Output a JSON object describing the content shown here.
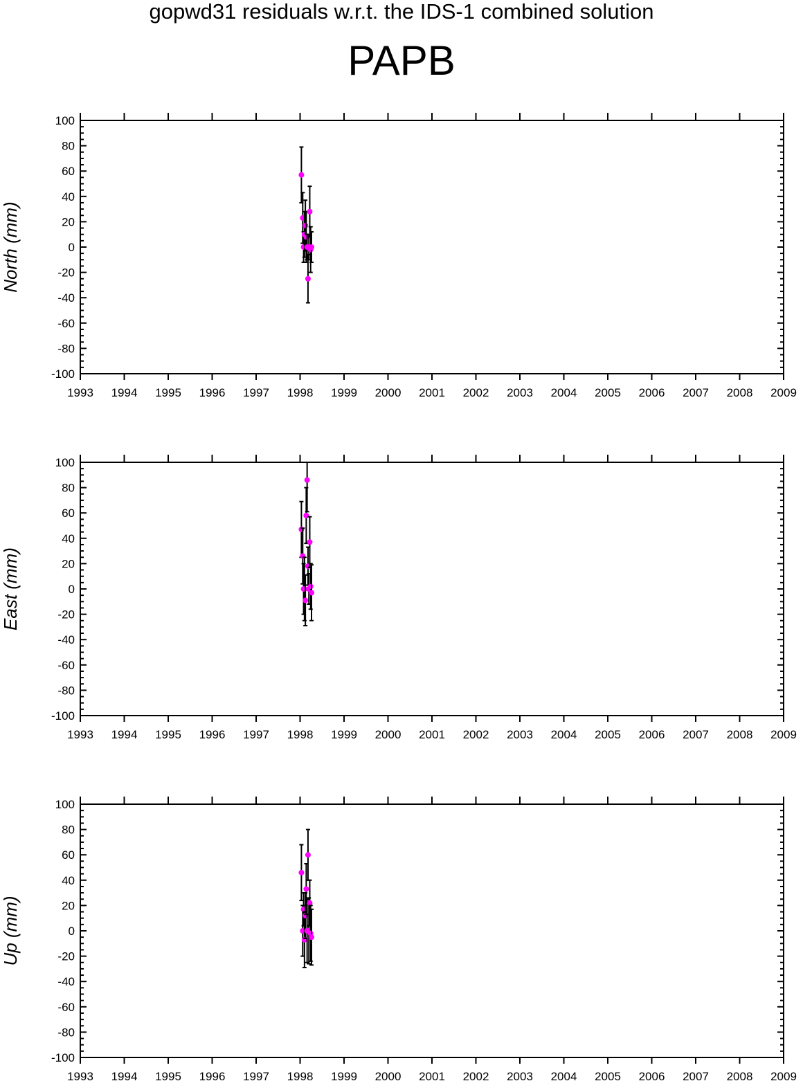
{
  "header": {
    "supertitle": "gopwd31 residuals w.r.t. the IDS-1 combined solution",
    "station": "PAPB"
  },
  "colors": {
    "point": "#ff00ff",
    "errorbar": "#000000",
    "axis": "#000000"
  },
  "chart_data": [
    {
      "type": "scatter",
      "ylabel": "North (mm)",
      "xlim": [
        1993,
        2009
      ],
      "ylim": [
        -100,
        100
      ],
      "x_ticks": [
        1993,
        1994,
        1995,
        1996,
        1997,
        1998,
        1999,
        2000,
        2001,
        2002,
        2003,
        2004,
        2005,
        2006,
        2007,
        2008,
        2009
      ],
      "y_ticks": [
        100,
        80,
        60,
        40,
        20,
        0,
        -20,
        -40,
        -60,
        -80,
        -100
      ],
      "grid": false,
      "series": [
        {
          "x": [
            1998.03,
            1998.06,
            1998.08,
            1998.1,
            1998.12,
            1998.14,
            1998.16,
            1998.18,
            1998.2,
            1998.22,
            1998.24,
            1998.26
          ],
          "y": [
            57,
            23,
            0,
            10,
            17,
            8,
            0,
            -25,
            0,
            28,
            -2,
            0
          ],
          "err": [
            22,
            20,
            12,
            18,
            20,
            20,
            10,
            19,
            10,
            20,
            18,
            12
          ]
        }
      ]
    },
    {
      "type": "scatter",
      "ylabel": "East (mm)",
      "xlim": [
        1993,
        2009
      ],
      "ylim": [
        -100,
        100
      ],
      "x_ticks": [
        1993,
        1994,
        1995,
        1996,
        1997,
        1998,
        1999,
        2000,
        2001,
        2002,
        2003,
        2004,
        2005,
        2006,
        2007,
        2008,
        2009
      ],
      "y_ticks": [
        100,
        80,
        60,
        40,
        20,
        0,
        -20,
        -40,
        -60,
        -80,
        -100
      ],
      "grid": false,
      "series": [
        {
          "x": [
            1998.03,
            1998.06,
            1998.08,
            1998.1,
            1998.12,
            1998.14,
            1998.16,
            1998.18,
            1998.2,
            1998.22,
            1998.24,
            1998.26
          ],
          "y": [
            47,
            26,
            0,
            0,
            -9,
            58,
            86,
            18,
            0,
            37,
            2,
            -3
          ],
          "err": [
            22,
            22,
            20,
            25,
            20,
            22,
            25,
            15,
            12,
            20,
            18,
            22
          ]
        }
      ]
    },
    {
      "type": "scatter",
      "ylabel": "Up (mm)",
      "xlim": [
        1993,
        2009
      ],
      "ylim": [
        -100,
        100
      ],
      "x_ticks": [
        1993,
        1994,
        1995,
        1996,
        1997,
        1998,
        1999,
        2000,
        2001,
        2002,
        2003,
        2004,
        2005,
        2006,
        2007,
        2008,
        2009
      ],
      "y_ticks": [
        100,
        80,
        60,
        40,
        20,
        0,
        -20,
        -40,
        -60,
        -80,
        -100
      ],
      "grid": false,
      "series": [
        {
          "x": [
            1998.03,
            1998.06,
            1998.08,
            1998.1,
            1998.12,
            1998.14,
            1998.16,
            1998.18,
            1998.2,
            1998.22,
            1998.24,
            1998.26
          ],
          "y": [
            46,
            0,
            17,
            -7,
            12,
            33,
            0,
            60,
            0,
            22,
            -2,
            -5
          ],
          "err": [
            22,
            20,
            13,
            22,
            18,
            20,
            25,
            20,
            26,
            18,
            22,
            22
          ]
        }
      ]
    }
  ]
}
